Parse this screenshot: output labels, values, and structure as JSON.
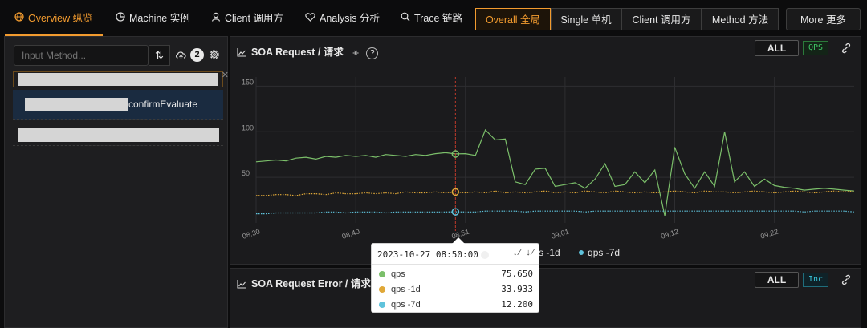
{
  "nav": {
    "tabs": [
      {
        "label": "Overview 纵览",
        "icon": "globe-icon"
      },
      {
        "label": "Machine 实例",
        "icon": "pie-chart-icon"
      },
      {
        "label": "Client 调用方",
        "icon": "user-icon"
      },
      {
        "label": "Analysis 分析",
        "icon": "heart-icon"
      },
      {
        "label": "Trace 链路",
        "icon": "search-icon"
      }
    ],
    "segments": [
      "Overall 全局",
      "Single 单机",
      "Client 调用方",
      "Method 方法"
    ],
    "more_label": "More 更多"
  },
  "sidebar": {
    "search_placeholder": "Input Method...",
    "sort_label": "⇅",
    "count": "2",
    "selected_method_suffix": "confirmEvaluate"
  },
  "panel1": {
    "title": "SOA Request / 请求",
    "all_label": "ALL",
    "badge": "QPS"
  },
  "panel2": {
    "title": "SOA Request Error / 请求错",
    "all_label": "ALL",
    "badge": "Inc"
  },
  "chart_data": {
    "type": "line",
    "title": "SOA Request / 请求",
    "xlabel": "",
    "ylabel": "",
    "ylim": [
      0,
      160
    ],
    "yticks": [
      50,
      100,
      150
    ],
    "xtick_labels": [
      "08:30",
      "08:40",
      "08:51",
      "09:01",
      "09:12",
      "09:22"
    ],
    "x": [
      "08:30",
      "08:31",
      "08:32",
      "08:33",
      "08:34",
      "08:35",
      "08:36",
      "08:37",
      "08:38",
      "08:39",
      "08:40",
      "08:41",
      "08:42",
      "08:43",
      "08:44",
      "08:45",
      "08:46",
      "08:47",
      "08:48",
      "08:49",
      "08:50",
      "08:51",
      "08:52",
      "08:53",
      "08:54",
      "08:55",
      "08:56",
      "08:57",
      "08:58",
      "08:59",
      "09:00",
      "09:01",
      "09:02",
      "09:03",
      "09:04",
      "09:05",
      "09:06",
      "09:07",
      "09:08",
      "09:09",
      "09:10",
      "09:11",
      "09:12",
      "09:13",
      "09:14",
      "09:15",
      "09:16",
      "09:17",
      "09:18",
      "09:19",
      "09:20",
      "09:21",
      "09:22",
      "09:23",
      "09:24",
      "09:25",
      "09:26",
      "09:27",
      "09:28",
      "09:29",
      "09:30"
    ],
    "series": [
      {
        "name": "qps",
        "color": "#7bbf6a",
        "values": [
          67,
          68,
          69,
          68,
          71,
          72,
          70,
          73,
          72,
          74,
          73,
          74,
          72,
          75,
          74,
          73,
          75,
          74,
          76,
          77,
          75.65,
          76,
          74,
          102,
          91,
          92,
          45,
          42,
          59,
          60,
          40,
          42,
          44,
          38,
          48,
          65,
          40,
          42,
          56,
          44,
          58,
          8,
          83,
          54,
          38,
          56,
          40,
          100,
          45,
          56,
          40,
          48,
          41,
          39,
          38,
          36,
          37,
          38,
          37,
          36,
          35
        ]
      },
      {
        "name": "qps -1d",
        "color": "#e0a838",
        "values": [
          30,
          30,
          31,
          31,
          30,
          32,
          32,
          31,
          33,
          32,
          32,
          33,
          32,
          33,
          32,
          34,
          33,
          33,
          34,
          33,
          33.933,
          33,
          34,
          33,
          35,
          33,
          34,
          33,
          34,
          35,
          33,
          34,
          33,
          35,
          34,
          33,
          35,
          34,
          33,
          34,
          33,
          34,
          35,
          34,
          33,
          35,
          34,
          34,
          33,
          34,
          35,
          34,
          33,
          34,
          35,
          34,
          33,
          34,
          35,
          34,
          35
        ]
      },
      {
        "name": "qps -7d",
        "color": "#5fc3dc",
        "values": [
          10,
          10,
          11,
          11,
          11,
          11,
          11,
          12,
          12,
          11,
          12,
          12,
          12,
          11,
          12,
          12,
          12,
          12,
          12,
          12,
          12.2,
          12,
          12,
          13,
          13,
          13,
          13,
          12,
          13,
          13,
          13,
          13,
          13,
          12,
          13,
          13,
          13,
          13,
          13,
          13,
          13,
          13,
          13,
          13,
          13,
          13,
          13,
          13,
          13,
          13,
          13,
          13,
          13,
          13,
          13,
          12,
          13,
          13,
          13,
          13,
          12
        ]
      }
    ],
    "grid": true,
    "legend": "bottom-center",
    "highlighted_index": 20
  },
  "tooltip": {
    "time": "2023-10-27 08:50:00",
    "rows": [
      {
        "name": "qps",
        "value": "75.650",
        "color": "#7bbf6a"
      },
      {
        "name": "qps -1d",
        "value": "33.933",
        "color": "#e0a838"
      },
      {
        "name": "qps -7d",
        "value": "12.200",
        "color": "#5fc3dc"
      }
    ]
  },
  "legend_visible": [
    {
      "label": "s -1d",
      "color": "#e0a838"
    },
    {
      "label": "qps -7d",
      "color": "#5fc3dc"
    }
  ]
}
